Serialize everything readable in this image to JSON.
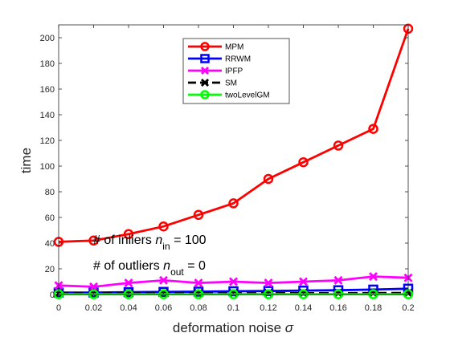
{
  "chart_data": {
    "type": "line",
    "title": "",
    "xlabel": "deformation noise",
    "xlabel_symbol": "σ",
    "ylabel": "time",
    "x": [
      0,
      0.02,
      0.04,
      0.06,
      0.08,
      0.1,
      0.12,
      0.14,
      0.16,
      0.18,
      0.2
    ],
    "x_tick_labels": [
      "0",
      "0.02",
      "0.04",
      "0.06",
      "0.08",
      "0.1",
      "0.12",
      "0.14",
      "0.16",
      "0.18",
      "0.2"
    ],
    "xlim": [
      0,
      0.2
    ],
    "ylim": [
      0,
      210
    ],
    "y_ticks": [
      0,
      20,
      40,
      60,
      80,
      100,
      120,
      140,
      160,
      180,
      200
    ],
    "grid": false,
    "legend_position": "top-center",
    "series": [
      {
        "name": "MPM",
        "color": "#ff0000",
        "marker": "circle",
        "dash": "solid",
        "values": [
          41,
          42,
          47,
          53,
          62,
          71,
          90,
          103,
          116,
          129,
          207
        ]
      },
      {
        "name": "RRWM",
        "color": "#0000ff",
        "marker": "square",
        "dash": "solid",
        "values": [
          1.5,
          1.5,
          1.8,
          2.0,
          2.2,
          2.5,
          2.7,
          3.0,
          3.3,
          3.8,
          4.5
        ]
      },
      {
        "name": "IPFP",
        "color": "#ff00ff",
        "marker": "x",
        "dash": "solid",
        "values": [
          7,
          6,
          9,
          11,
          9,
          10,
          9,
          10,
          11,
          14,
          13
        ]
      },
      {
        "name": "SM",
        "color": "#000000",
        "marker": "x",
        "dash": "dashed",
        "values": [
          0.8,
          0.8,
          0.8,
          0.9,
          0.9,
          0.9,
          1.0,
          1.0,
          1.0,
          1.1,
          1.1
        ]
      },
      {
        "name": "twoLevelGM",
        "color": "#00ff00",
        "marker": "circle",
        "dash": "solid",
        "values": [
          0.2,
          0.2,
          0.2,
          0.2,
          0.2,
          0.2,
          0.2,
          0.2,
          0.2,
          0.2,
          0.2
        ]
      }
    ],
    "annotations": [
      {
        "prefix": "# of inliers ",
        "var": "n",
        "sub": "in",
        "suffix": " = 100"
      },
      {
        "prefix": "# of outliers ",
        "var": "n",
        "sub": "out",
        "suffix": " = 0"
      }
    ]
  }
}
